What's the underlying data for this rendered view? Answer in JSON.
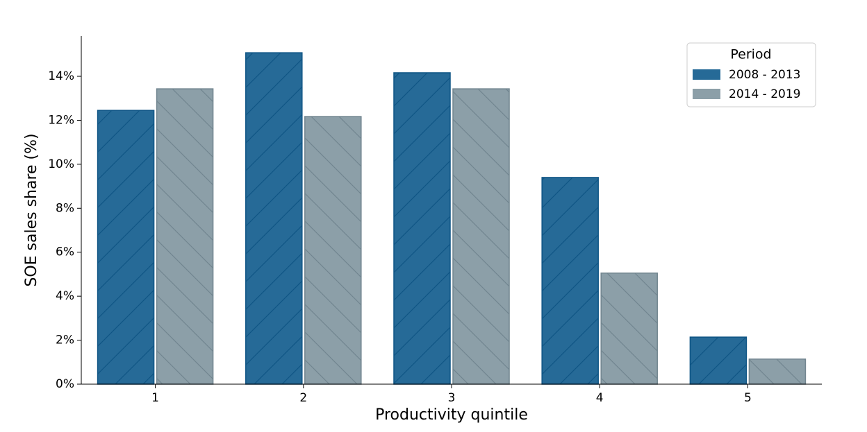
{
  "chart_data": {
    "type": "bar",
    "x_label": "Productivity quintile",
    "y_label": "SOE sales share (%)",
    "categories": [
      "1",
      "2",
      "3",
      "4",
      "5"
    ],
    "series": [
      {
        "name": "2008 - 2013",
        "color": "#266a97",
        "values": [
          12.45,
          15.07,
          14.16,
          9.4,
          2.14
        ]
      },
      {
        "name": "2014 - 2019",
        "color": "#8c9fa8",
        "values": [
          13.43,
          12.17,
          13.43,
          5.05,
          1.14
        ]
      }
    ],
    "ylim": [
      0,
      15.83
    ],
    "yticks": [
      {
        "value": 0,
        "label": "0%"
      },
      {
        "value": 2,
        "label": "2%"
      },
      {
        "value": 4,
        "label": "4%"
      },
      {
        "value": 6,
        "label": "6%"
      },
      {
        "value": 8,
        "label": "8%"
      },
      {
        "value": 10,
        "label": "10%"
      },
      {
        "value": 12,
        "label": "12%"
      },
      {
        "value": 14,
        "label": "14%"
      }
    ],
    "legend_title": "Period",
    "legend_position": "upper right",
    "grid": false
  }
}
